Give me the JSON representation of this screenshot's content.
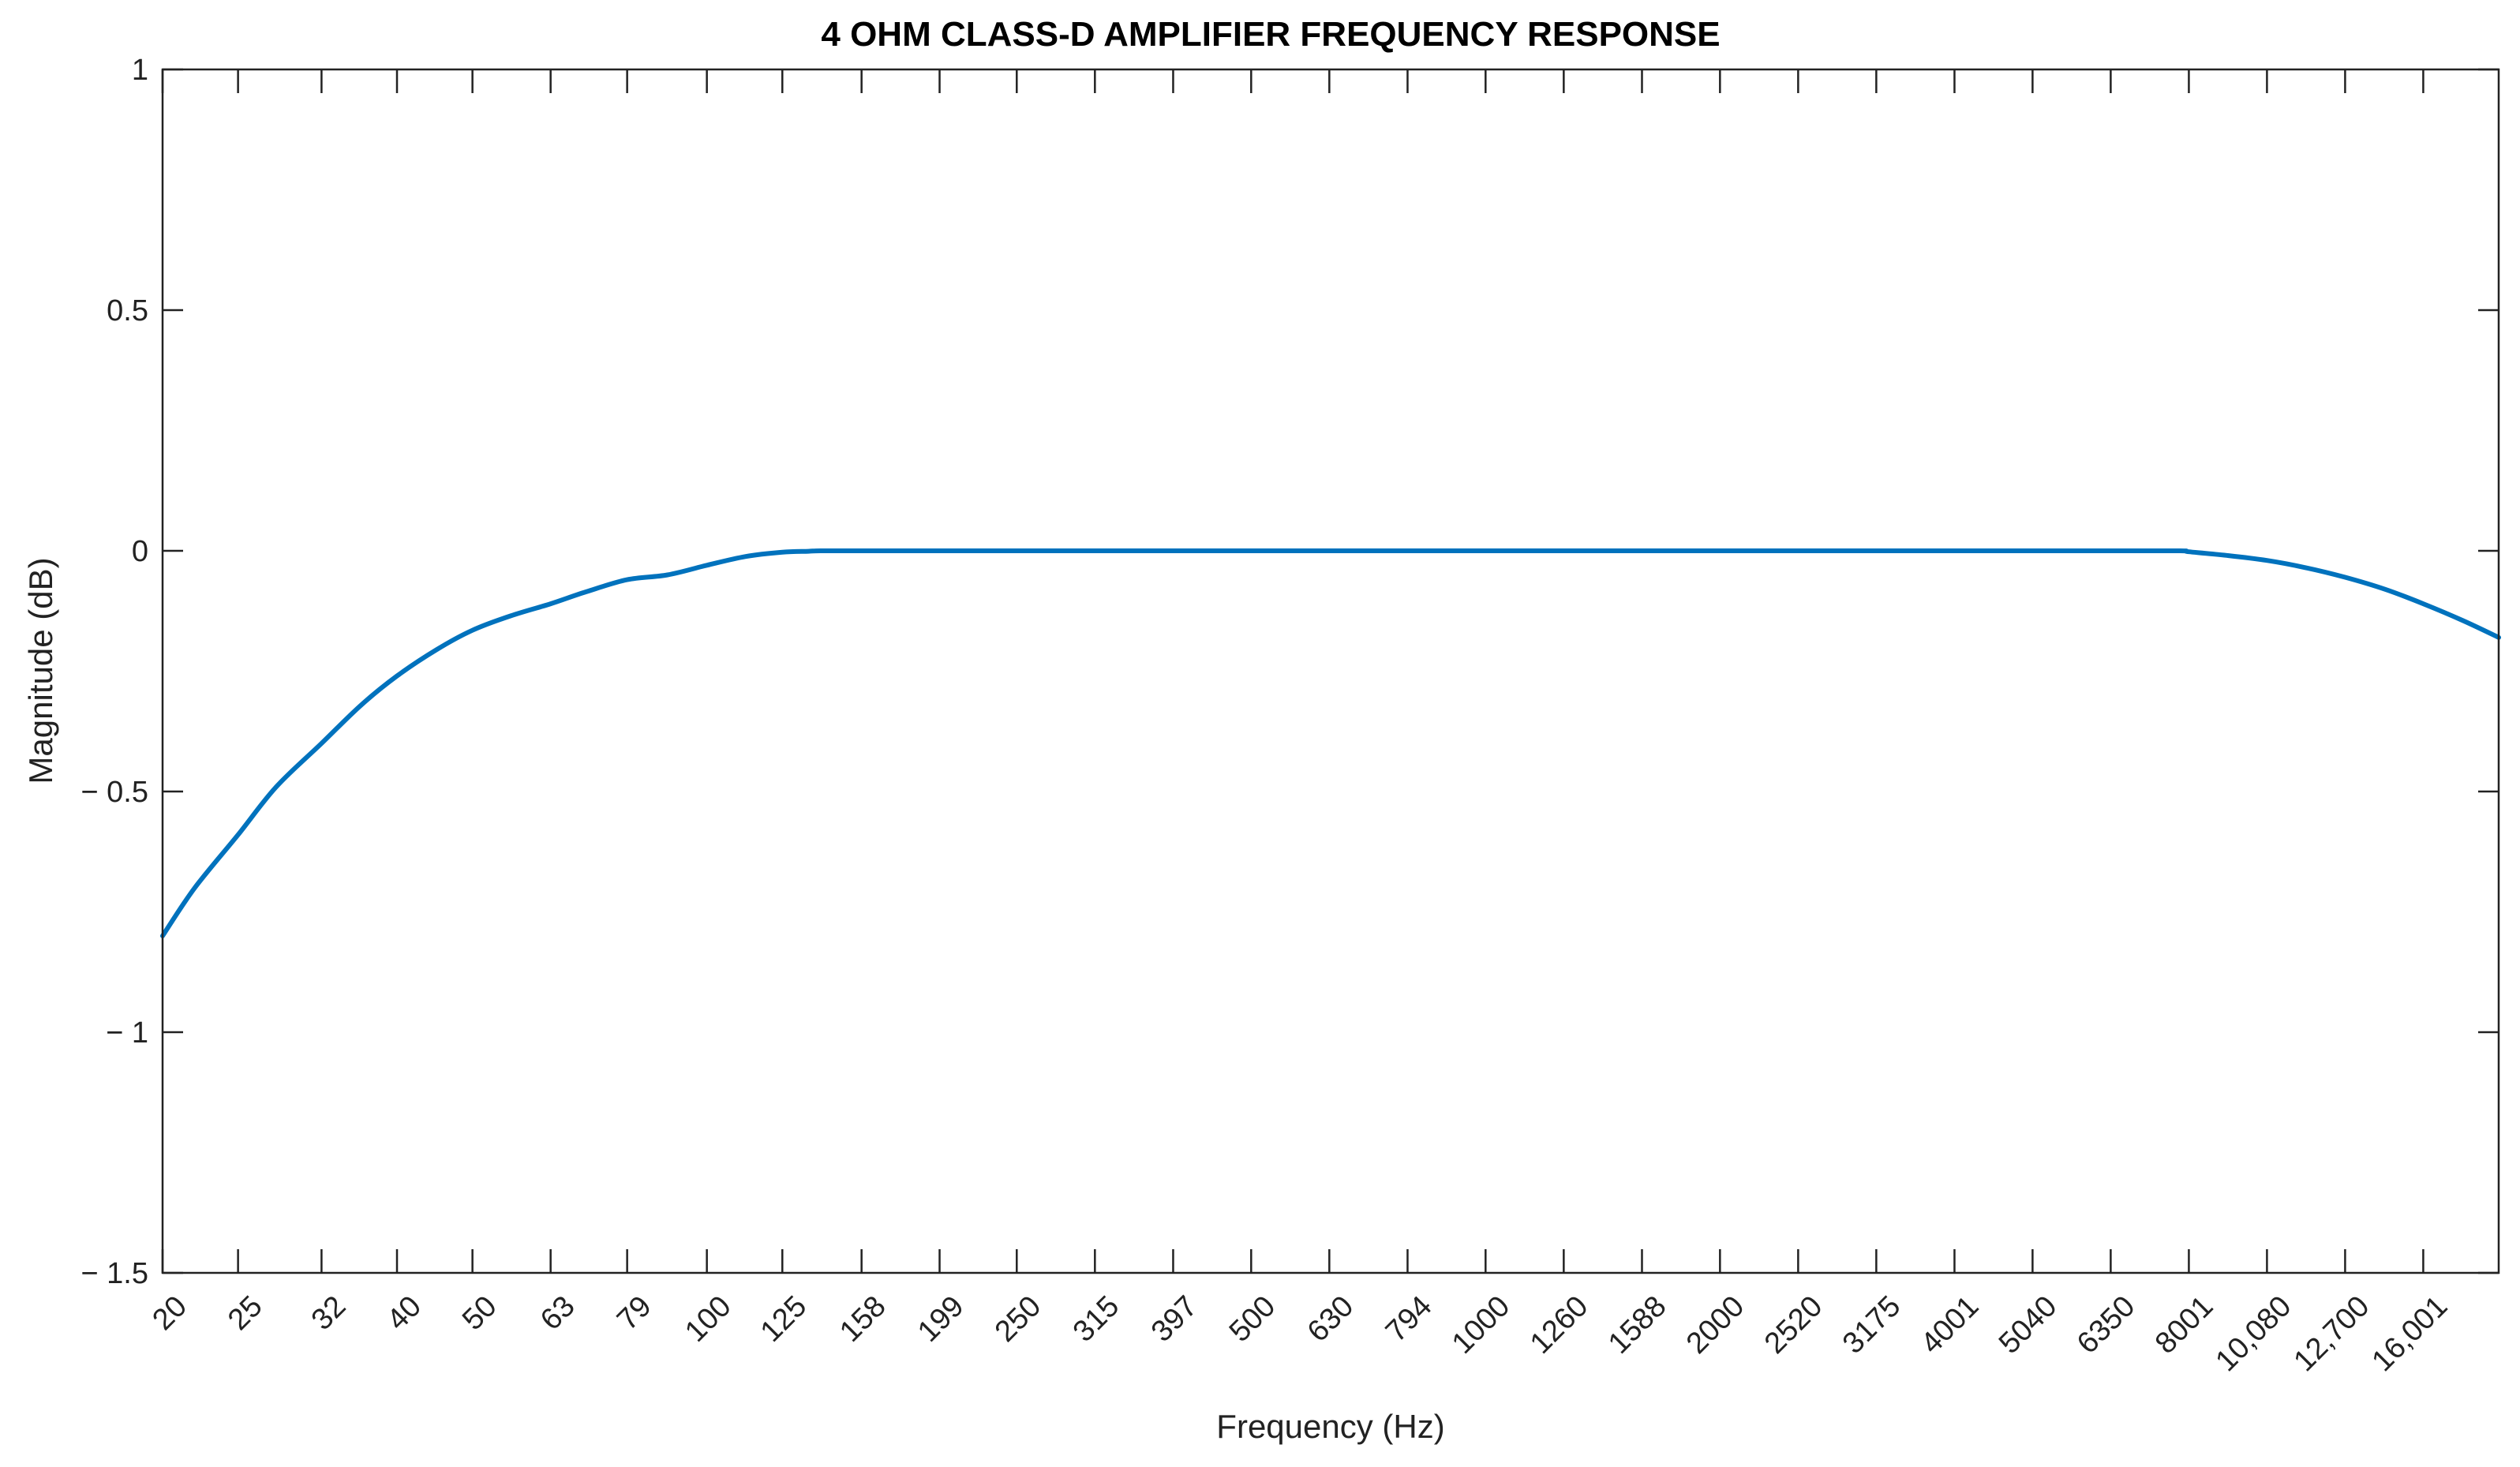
{
  "chart_data": {
    "type": "line",
    "title": "4 OHM CLASS-D AMPLIFIER FREQUENCY RESPONSE",
    "xlabel": "Frequency (Hz)",
    "ylabel": "Magnitude (dB)",
    "x_scale": "log",
    "xlim": [
      20,
      20000
    ],
    "ylim": [
      -1.5,
      1
    ],
    "x_ticks": [
      "20",
      "25",
      "32",
      "40",
      "50",
      "63",
      "79",
      "100",
      "125",
      "158",
      "199",
      "250",
      "315",
      "397",
      "500",
      "630",
      "794",
      "1000",
      "1260",
      "1588",
      "2000",
      "2520",
      "3175",
      "4001",
      "5040",
      "6350",
      "8001",
      "10,080",
      "12,700",
      "16,001"
    ],
    "x_tick_values": [
      20,
      25,
      32,
      40,
      50,
      63,
      79,
      100,
      125,
      158,
      199,
      250,
      315,
      397,
      500,
      630,
      794,
      1000,
      1260,
      1588,
      2000,
      2520,
      3175,
      4001,
      5040,
      6350,
      8001,
      10080,
      12700,
      16001
    ],
    "y_ticks": [
      {
        "value": 1,
        "label": "1"
      },
      {
        "value": 0.5,
        "label": "0.5"
      },
      {
        "value": 0,
        "label": "0"
      },
      {
        "value": -0.5,
        "label": "− 0.5"
      },
      {
        "value": -1,
        "label": "− 1"
      },
      {
        "value": -1.5,
        "label": "− 1.5"
      }
    ],
    "grid": false,
    "series": [
      {
        "color": "#0072BD",
        "x": [
          20,
          22,
          25,
          28,
          32,
          36,
          40,
          45,
          50,
          56,
          63,
          70,
          79,
          89,
          100,
          112,
          125,
          135,
          140,
          158,
          199,
          250,
          500,
          1000,
          2000,
          4001,
          6350,
          7800,
          8001,
          9000,
          10080,
          11300,
          12700,
          14300,
          16001,
          18000,
          20000
        ],
        "y": [
          -0.8,
          -0.7,
          -0.59,
          -0.49,
          -0.4,
          -0.32,
          -0.26,
          -0.205,
          -0.165,
          -0.135,
          -0.11,
          -0.085,
          -0.06,
          -0.05,
          -0.03,
          -0.012,
          -0.003,
          -0.001,
          0,
          0,
          0,
          0,
          0,
          0,
          0,
          0,
          0,
          0,
          -0.002,
          -0.01,
          -0.02,
          -0.035,
          -0.055,
          -0.08,
          -0.11,
          -0.145,
          -0.18
        ]
      }
    ]
  }
}
